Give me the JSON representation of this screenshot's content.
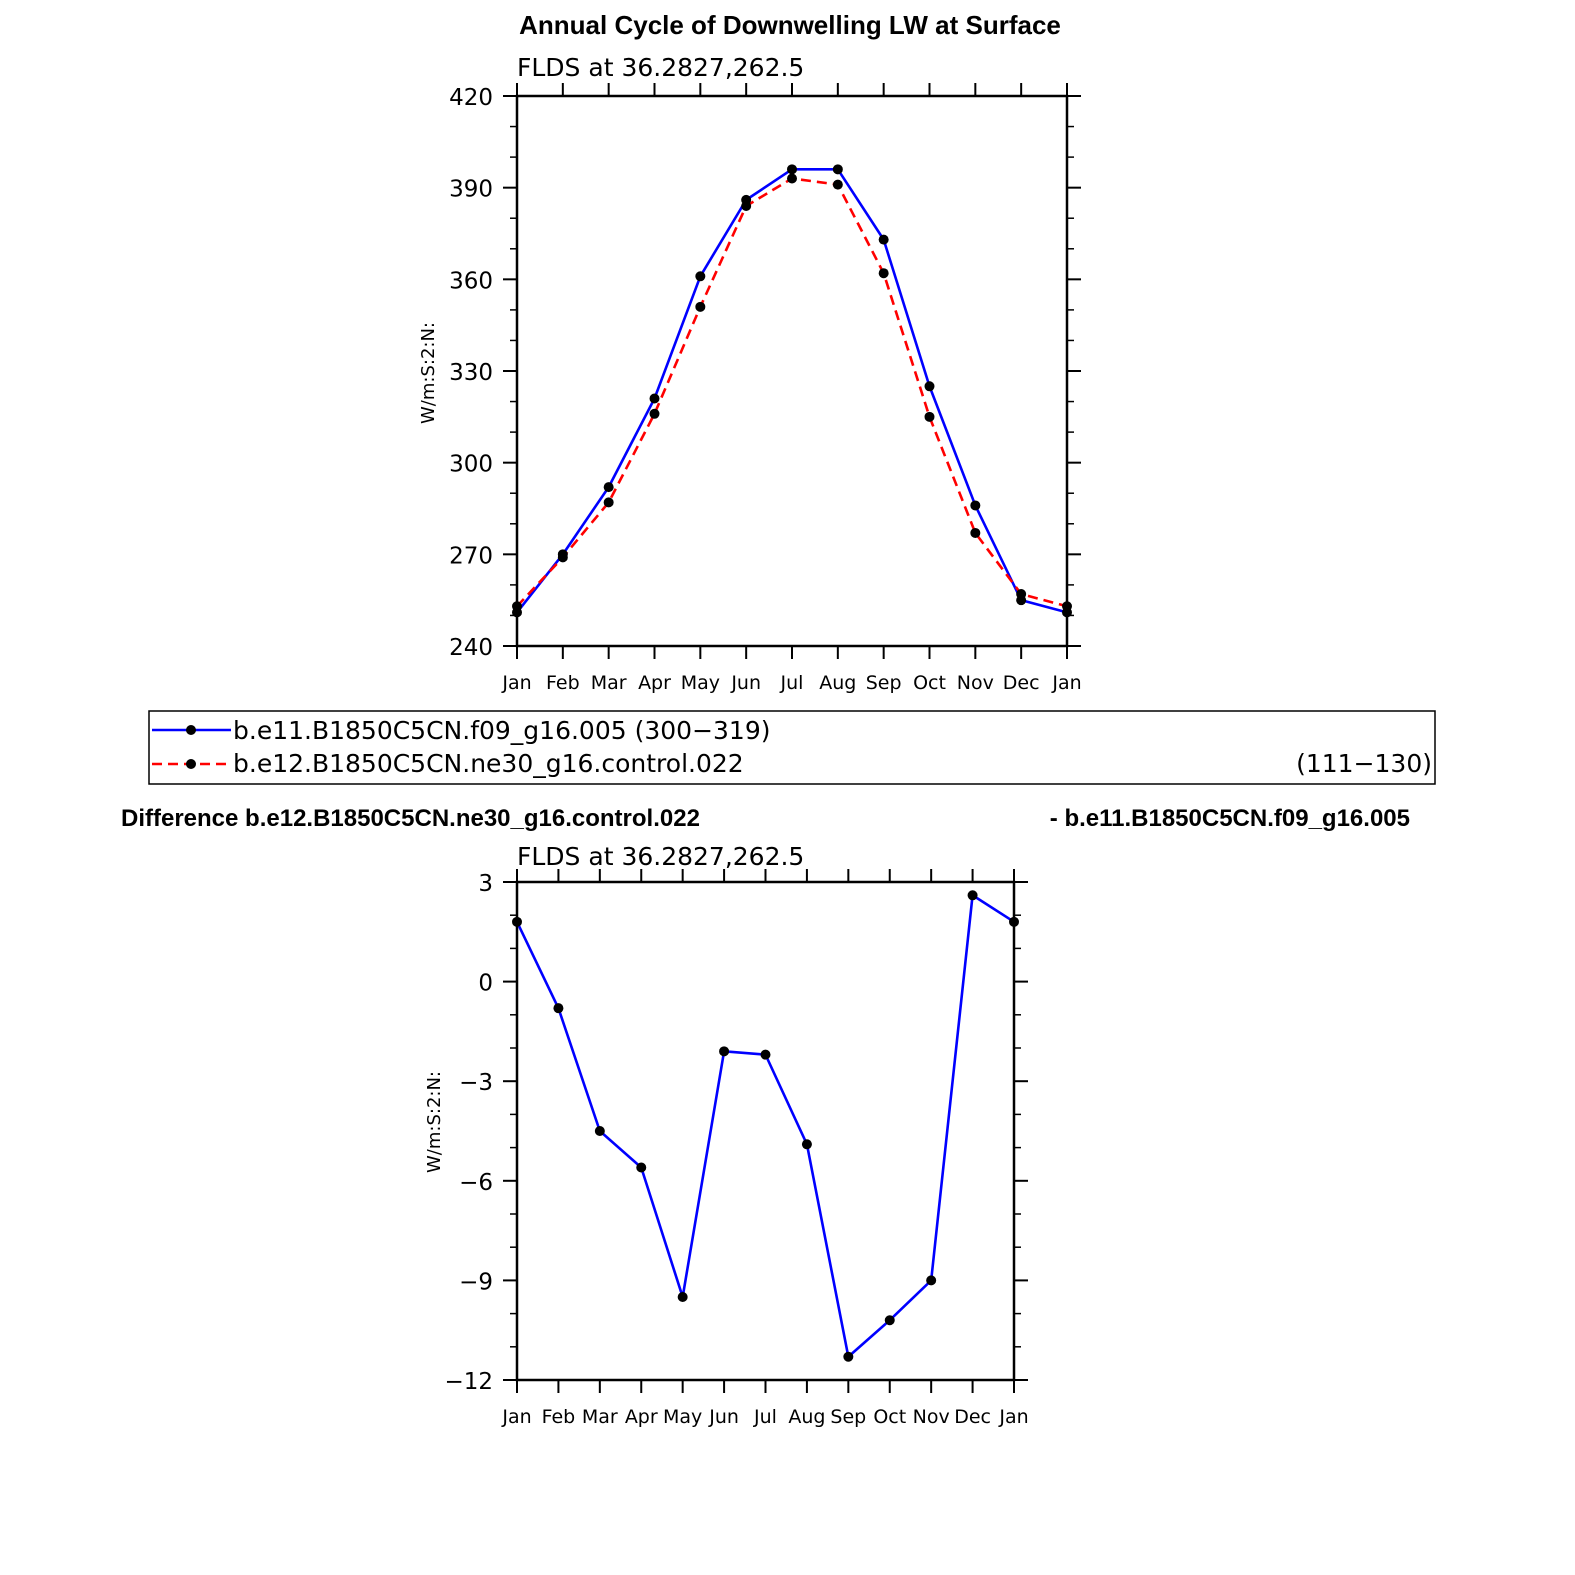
{
  "colors": {
    "blue": "#0000ff",
    "red": "#ff0000",
    "black": "#000000"
  },
  "top": {
    "title": "Annual Cycle of Downwelling LW at Surface",
    "subtitle": "FLDS at 36.2827,262.5",
    "legend": {
      "entries": [
        {
          "label": "b.e11.B1850C5CN.f09_g16.005 (300−319)",
          "extra": ""
        },
        {
          "label": "b.e12.B1850C5CN.ne30_g16.control.022",
          "extra": "(111−130)"
        }
      ]
    }
  },
  "bottom": {
    "title_left": "Difference b.e12.B1850C5CN.ne30_g16.control.022",
    "title_right": "- b.e11.B1850C5CN.f09_g16.005",
    "subtitle": "FLDS at 36.2827,262.5"
  },
  "chart_data": [
    {
      "type": "line",
      "title": "Annual Cycle of Downwelling LW at Surface",
      "subtitle": "FLDS at 36.2827,262.5",
      "ylabel": "W/m:S:2:N:",
      "categories": [
        "Jan",
        "Feb",
        "Mar",
        "Apr",
        "May",
        "Jun",
        "Jul",
        "Aug",
        "Sep",
        "Oct",
        "Nov",
        "Dec",
        "Jan"
      ],
      "ylim": [
        240,
        420
      ],
      "yticks": [
        240,
        270,
        300,
        330,
        360,
        390,
        420
      ],
      "series": [
        {
          "name": "b.e11.B1850C5CN.f09_g16.005 (300−319)",
          "color": "#0000ff",
          "style": "solid",
          "values": [
            251,
            270,
            292,
            321,
            361,
            386,
            396,
            396,
            373,
            325,
            286,
            255,
            251
          ]
        },
        {
          "name": "b.e12.B1850C5CN.ne30_g16.control.022 (111−130)",
          "color": "#ff0000",
          "style": "dashed",
          "values": [
            253,
            269,
            287,
            316,
            351,
            384,
            393,
            391,
            362,
            315,
            277,
            257,
            253
          ]
        }
      ],
      "legend": "bottom",
      "grid": false
    },
    {
      "type": "line",
      "title": "Difference b.e12.B1850C5CN.ne30_g16.control.022 - b.e11.B1850C5CN.f09_g16.005",
      "subtitle": "FLDS at 36.2827,262.5",
      "ylabel": "W/m:S:2:N:",
      "categories": [
        "Jan",
        "Feb",
        "Mar",
        "Apr",
        "May",
        "Jun",
        "Jul",
        "Aug",
        "Sep",
        "Oct",
        "Nov",
        "Dec",
        "Jan"
      ],
      "ylim": [
        -12,
        3
      ],
      "yticks": [
        -12,
        -9,
        -6,
        -3,
        0,
        3
      ],
      "ytick_labels": [
        "−12",
        "−9",
        "−6",
        "−3",
        "0",
        "3"
      ],
      "series": [
        {
          "color": "#0000ff",
          "style": "solid",
          "values": [
            1.8,
            -0.8,
            -4.5,
            -5.6,
            -9.5,
            -2.1,
            -2.2,
            -4.9,
            -11.3,
            -10.2,
            -9.0,
            2.6,
            1.8
          ]
        }
      ],
      "grid": false
    }
  ]
}
